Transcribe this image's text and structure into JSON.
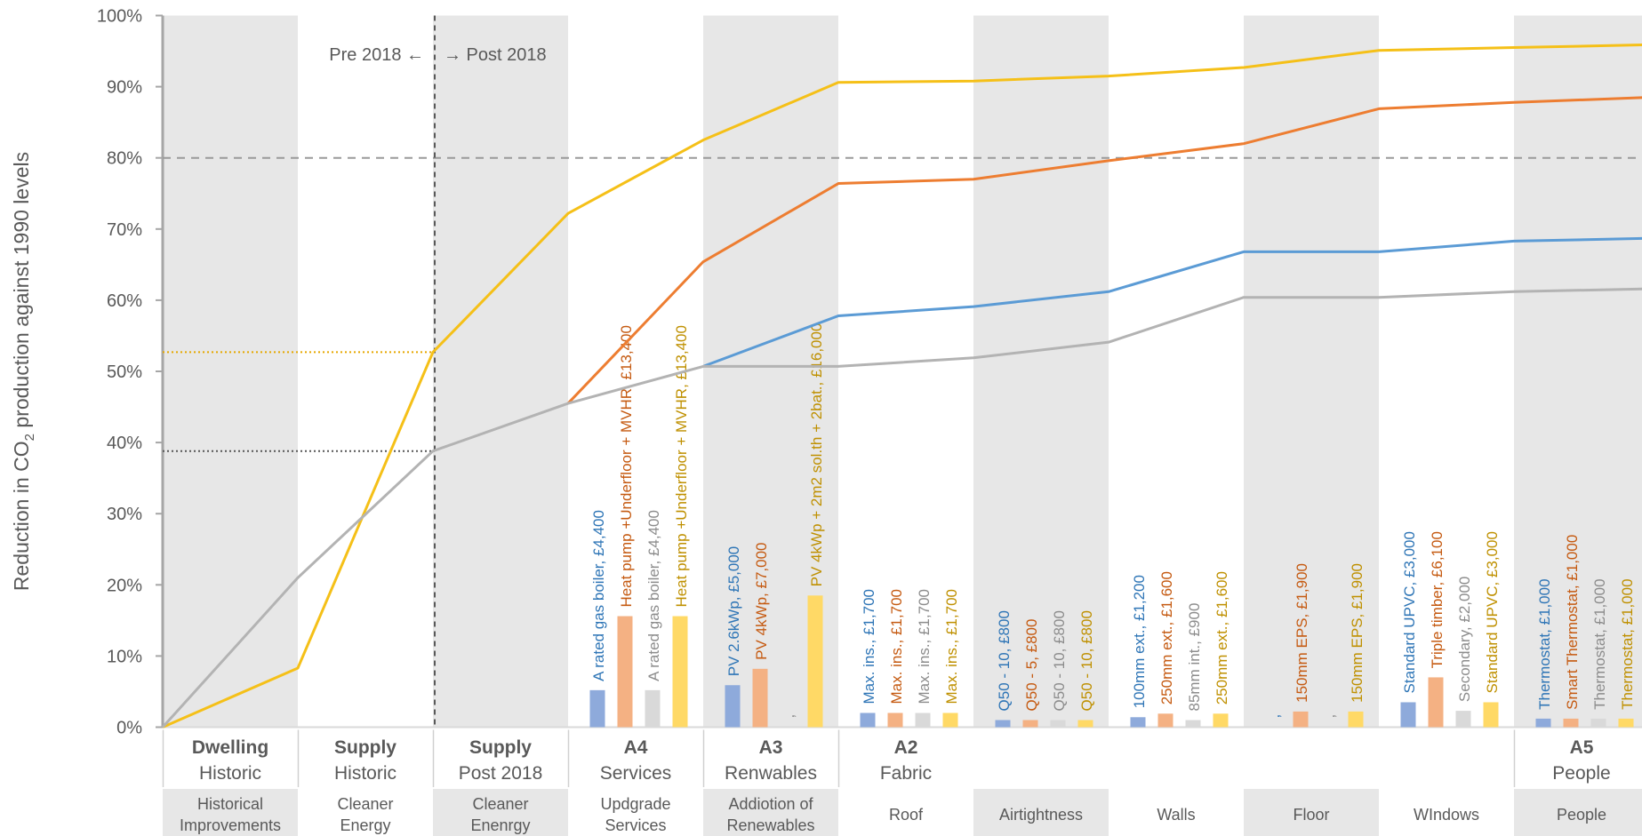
{
  "chart_data": {
    "type": "line",
    "ylabel_parts": [
      "Reduction in CO",
      "2",
      " production against 1990 levels"
    ],
    "ylim": [
      0,
      100
    ],
    "ytick_labels": [
      "0%",
      "10%",
      "20%",
      "30%",
      "40%",
      "50%",
      "60%",
      "70%",
      "80%",
      "90%",
      "100%"
    ],
    "target_line": 80,
    "divider_labels": {
      "pre": "Pre 2018 ←",
      "post": "→ Post 2018"
    },
    "reference_levels": [
      {
        "value": 52.7,
        "color": "#e6a800"
      },
      {
        "value": 38.8,
        "color": "#555555"
      }
    ],
    "columns": [
      {
        "bold": "Dwelling",
        "sub": "Historic",
        "bottom": [
          "Historical",
          "Improvements"
        ],
        "shaded": true
      },
      {
        "bold": "Supply",
        "sub": "Historic",
        "bottom": [
          "Cleaner",
          "Energy"
        ],
        "shaded": false
      },
      {
        "bold": "Supply",
        "sub": "Post 2018",
        "bottom": [
          "Cleaner",
          "Enenrgy"
        ],
        "shaded": true
      },
      {
        "bold": "A4",
        "sub": "Services",
        "bottom": [
          "Updgrade",
          "Services"
        ],
        "shaded": false
      },
      {
        "bold": "A3",
        "sub": "Renwables",
        "bottom": [
          "Addiotion of",
          "Renewables"
        ],
        "shaded": true
      },
      {
        "bold": "A2",
        "sub": "Fabric",
        "bottom": [
          "Roof"
        ],
        "shaded": false
      },
      {
        "bold": "",
        "sub": "",
        "bottom": [
          "Airtightness"
        ],
        "shaded": true
      },
      {
        "bold": "",
        "sub": "",
        "bottom": [
          "Walls"
        ],
        "shaded": false
      },
      {
        "bold": "",
        "sub": "",
        "bottom": [
          "Floor"
        ],
        "shaded": true
      },
      {
        "bold": "",
        "sub": "",
        "bottom": [
          "WIndows"
        ],
        "shaded": false
      },
      {
        "bold": "A5",
        "sub": "People",
        "bottom": [
          "People"
        ],
        "shaded": true
      }
    ],
    "series": [
      {
        "color": "#f5c018",
        "points": [
          [
            0,
            0
          ],
          [
            1,
            8.3
          ],
          [
            2,
            52.7
          ],
          [
            3,
            72.2
          ],
          [
            4,
            82.5
          ],
          [
            5,
            90.6
          ],
          [
            6,
            90.8
          ],
          [
            7,
            91.5
          ],
          [
            8,
            92.7
          ],
          [
            9,
            95.1
          ],
          [
            10,
            95.5
          ],
          [
            11,
            95.9
          ]
        ]
      },
      {
        "color": "#ed7d31",
        "points": [
          [
            3,
            45.5
          ],
          [
            4,
            65.4
          ],
          [
            5,
            76.4
          ],
          [
            6,
            77.0
          ],
          [
            7,
            79.6
          ],
          [
            8,
            82.0
          ],
          [
            9,
            86.9
          ],
          [
            10,
            87.8
          ],
          [
            11,
            88.5
          ]
        ]
      },
      {
        "color": "#5b9bd5",
        "points": [
          [
            4,
            50.7
          ],
          [
            5,
            57.8
          ],
          [
            6,
            59.1
          ],
          [
            7,
            61.2
          ],
          [
            8,
            66.8
          ],
          [
            9,
            66.8
          ],
          [
            10,
            68.3
          ],
          [
            11,
            68.7
          ]
        ]
      },
      {
        "color": "#b3b3b3",
        "points": [
          [
            0,
            0
          ],
          [
            1,
            21.0
          ],
          [
            2,
            38.8
          ],
          [
            3,
            45.5
          ],
          [
            4,
            50.7
          ],
          [
            5,
            50.7
          ],
          [
            6,
            51.9
          ],
          [
            7,
            54.1
          ],
          [
            8,
            60.4
          ],
          [
            9,
            60.4
          ],
          [
            10,
            61.2
          ],
          [
            11,
            61.6
          ]
        ]
      }
    ],
    "bar_groups": [
      {
        "column": 3,
        "bars": [
          {
            "value": 5.2,
            "color": "#8eaadb",
            "label": "A rated gas boiler, £4,400",
            "label_color": "#2e75b6"
          },
          {
            "value": 15.6,
            "color": "#f4b183",
            "label": "Heat pump +Underfloor + MVHR, £13,400",
            "label_color": "#c55a11"
          },
          {
            "value": 5.2,
            "color": "#d9d9d9",
            "label": "A rated gas boiler, £4,400",
            "label_color": "#8c8c8c"
          },
          {
            "value": 15.6,
            "color": "#ffd966",
            "label": "Heat pump +Underfloor + MVHR, £13,400",
            "label_color": "#bf9000"
          }
        ]
      },
      {
        "column": 4,
        "bars": [
          {
            "value": 5.9,
            "color": "#8eaadb",
            "label": "PV 2.6kWp, £5,000",
            "label_color": "#2e75b6"
          },
          {
            "value": 8.2,
            "color": "#f4b183",
            "label": "PV 4kWp, £7,000",
            "label_color": "#c55a11"
          },
          {
            "value": 0,
            "color": "#d9d9d9",
            "label": ",",
            "label_color": "#8c8c8c"
          },
          {
            "value": 18.5,
            "color": "#ffd966",
            "label": "PV 4kWp + 2m2 sol.th + 2bat., £16,000",
            "label_color": "#bf9000"
          }
        ]
      },
      {
        "column": 5,
        "bars": [
          {
            "value": 2.0,
            "color": "#8eaadb",
            "label": "Max. ins., £1,700",
            "label_color": "#2e75b6"
          },
          {
            "value": 2.0,
            "color": "#f4b183",
            "label": "Max. ins., £1,700",
            "label_color": "#c55a11"
          },
          {
            "value": 2.0,
            "color": "#d9d9d9",
            "label": "Max. ins., £1,700",
            "label_color": "#8c8c8c"
          },
          {
            "value": 2.0,
            "color": "#ffd966",
            "label": "Max. ins., £1,700",
            "label_color": "#bf9000"
          }
        ]
      },
      {
        "column": 6,
        "bars": [
          {
            "value": 1.0,
            "color": "#8eaadb",
            "label": "Q50 - 10, £800",
            "label_color": "#2e75b6"
          },
          {
            "value": 1.0,
            "color": "#f4b183",
            "label": "Q50 - 5, £800",
            "label_color": "#c55a11"
          },
          {
            "value": 1.0,
            "color": "#d9d9d9",
            "label": "Q50 - 10, £800",
            "label_color": "#8c8c8c"
          },
          {
            "value": 1.0,
            "color": "#ffd966",
            "label": "Q50 - 10, £800",
            "label_color": "#bf9000"
          }
        ]
      },
      {
        "column": 7,
        "bars": [
          {
            "value": 1.4,
            "color": "#8eaadb",
            "label": "100mm ext., £1,200",
            "label_color": "#2e75b6"
          },
          {
            "value": 1.9,
            "color": "#f4b183",
            "label": "250mm ext., £1,600",
            "label_color": "#c55a11"
          },
          {
            "value": 1.0,
            "color": "#d9d9d9",
            "label": "85mm int., £900",
            "label_color": "#8c8c8c"
          },
          {
            "value": 1.9,
            "color": "#ffd966",
            "label": "250mm ext., £1,600",
            "label_color": "#bf9000"
          }
        ]
      },
      {
        "column": 8,
        "bars": [
          {
            "value": 0,
            "color": "#8eaadb",
            "label": ",",
            "label_color": "#2e75b6"
          },
          {
            "value": 2.2,
            "color": "#f4b183",
            "label": "150mm EPS, £1,900",
            "label_color": "#c55a11"
          },
          {
            "value": 0,
            "color": "#d9d9d9",
            "label": ",",
            "label_color": "#8c8c8c"
          },
          {
            "value": 2.2,
            "color": "#ffd966",
            "label": "150mm EPS, £1,900",
            "label_color": "#bf9000"
          }
        ]
      },
      {
        "column": 9,
        "bars": [
          {
            "value": 3.5,
            "color": "#8eaadb",
            "label": "Standard UPVC, £3,000",
            "label_color": "#2e75b6"
          },
          {
            "value": 7.0,
            "color": "#f4b183",
            "label": "Triple timber, £6,100",
            "label_color": "#c55a11"
          },
          {
            "value": 2.3,
            "color": "#d9d9d9",
            "label": "Secondary, £2,000",
            "label_color": "#8c8c8c"
          },
          {
            "value": 3.5,
            "color": "#ffd966",
            "label": "Standard UPVC, £3,000",
            "label_color": "#bf9000"
          }
        ]
      },
      {
        "column": 10,
        "bars": [
          {
            "value": 1.2,
            "color": "#8eaadb",
            "label": "Thermostat, £1,000",
            "label_color": "#2e75b6"
          },
          {
            "value": 1.2,
            "color": "#f4b183",
            "label": "Smart Thermostat, £1,000",
            "label_color": "#c55a11"
          },
          {
            "value": 1.2,
            "color": "#d9d9d9",
            "label": "Thermostat, £1,000",
            "label_color": "#8c8c8c"
          },
          {
            "value": 1.2,
            "color": "#ffd966",
            "label": "Thermostat, £1,000",
            "label_color": "#bf9000"
          }
        ]
      }
    ]
  }
}
